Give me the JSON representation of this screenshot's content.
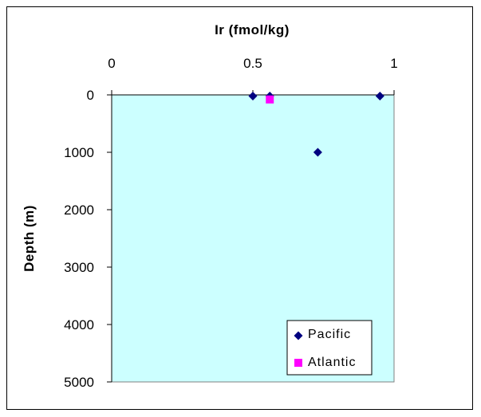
{
  "chart_data": {
    "type": "scatter",
    "xlabel": "Ir (fmol/kg)",
    "ylabel": "Depth (m)",
    "xlim": [
      0,
      1
    ],
    "ylim": [
      0,
      5000
    ],
    "y_inverted": true,
    "x_axis_position": "top",
    "x_ticks": [
      "0",
      "0.5",
      "1"
    ],
    "y_ticks": [
      "0",
      "1000",
      "2000",
      "3000",
      "4000",
      "5000"
    ],
    "plot_background": "#ccffff",
    "grid": false,
    "legend_position": "bottom-right",
    "series": [
      {
        "name": "Pacific",
        "marker": "diamond",
        "color": "#000080",
        "x": [
          0.5,
          0.56,
          0.95,
          0.73
        ],
        "y": [
          20,
          20,
          20,
          1000
        ]
      },
      {
        "name": "Atlantic",
        "marker": "square",
        "color": "#ff00ff",
        "x": [
          0.56
        ],
        "y": [
          80
        ]
      }
    ]
  }
}
